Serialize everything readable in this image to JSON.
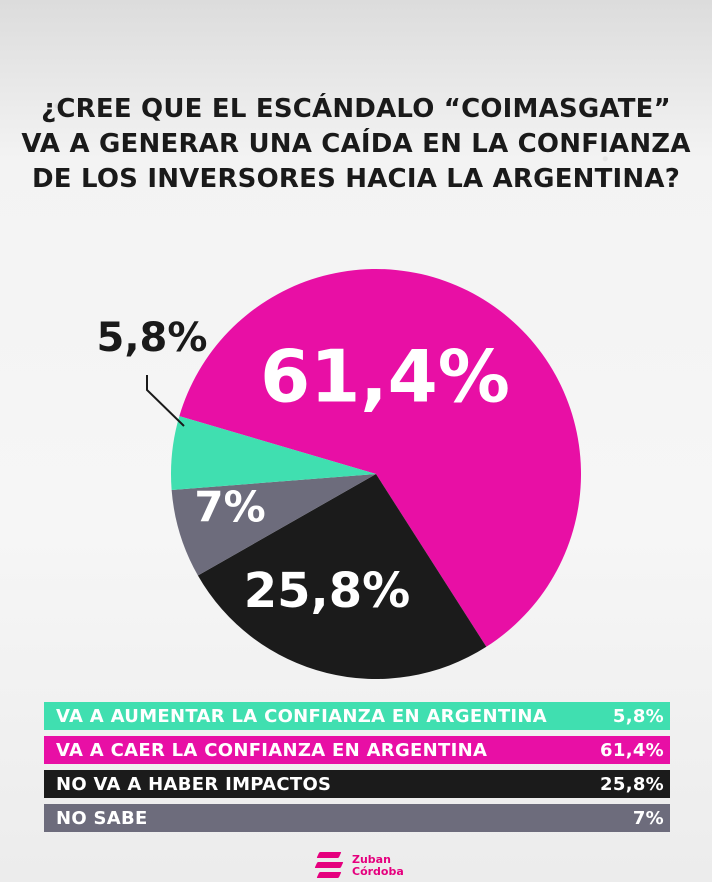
{
  "title_lines": [
    "¿CREE QUE EL ESCÁNDALO “COIMASGATE”",
    "VA A GENERAR UNA CAÍDA EN LA CONFIANZA",
    "DE LOS INVERSORES HACIA LA ARGENTINA?"
  ],
  "chart_data": {
    "type": "pie",
    "title": "¿CREE QUE EL ESCÁNDALO “COIMASGATE” VA A GENERAR UNA CAÍDA EN LA CONFIANZA DE LOS INVERSORES HACIA LA ARGENTINA?",
    "slices": [
      {
        "label": "VA A AUMENTAR LA CONFIANZA EN ARGENTINA",
        "value": 5.8,
        "display": "5,8%",
        "color": "#40dfb0"
      },
      {
        "label": "VA A CAER LA CONFIANZA EN ARGENTINA",
        "value": 61.4,
        "display": "61,4%",
        "color": "#e80fa5"
      },
      {
        "label": "NO VA A HABER IMPACTOS",
        "value": 25.8,
        "display": "25,8%",
        "color": "#1b1b1b"
      },
      {
        "label": "NO SABE",
        "value": 7,
        "display": "7%",
        "color": "#6d6c7c"
      }
    ],
    "legend_placement": "bottom"
  },
  "legend_text_colors": [
    "#ffffff",
    "#ffffff",
    "#ffffff",
    "#ffffff"
  ],
  "logo": {
    "line1": "Zuban",
    "line2": "Córdoba",
    "color": "#e5007e"
  }
}
